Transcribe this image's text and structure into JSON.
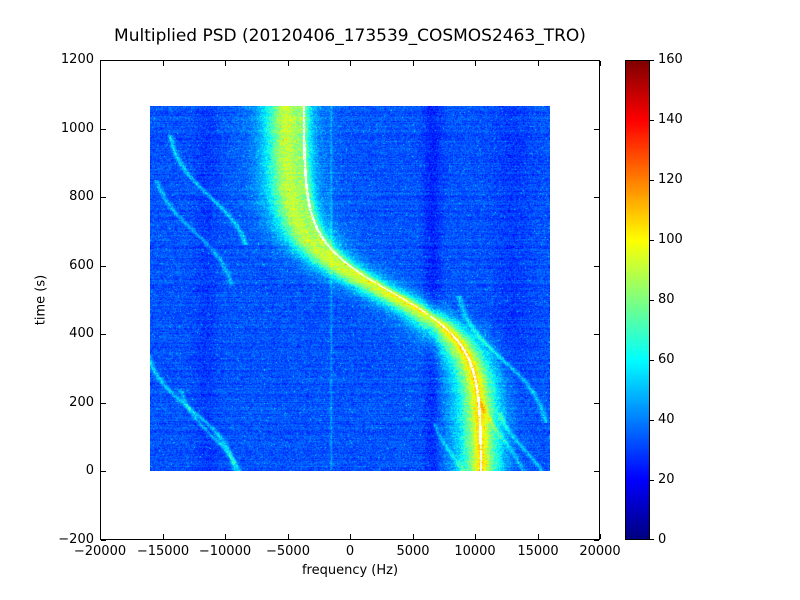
{
  "chart_data": {
    "type": "heatmap",
    "title": "Multiplied PSD (20120406_173539_COSMOS2463_TRO)",
    "xlabel": "frequency (Hz)",
    "ylabel": "time (s)",
    "xlim": [
      -20000,
      20000
    ],
    "ylim": [
      -200,
      1200
    ],
    "grid": false,
    "legend": "none",
    "xticks": [
      {
        "value": -20000,
        "label": "−20000"
      },
      {
        "value": -15000,
        "label": "−15000"
      },
      {
        "value": -10000,
        "label": "−10000"
      },
      {
        "value": -5000,
        "label": "−5000"
      },
      {
        "value": 0,
        "label": "0"
      },
      {
        "value": 5000,
        "label": "5000"
      },
      {
        "value": 10000,
        "label": "10000"
      },
      {
        "value": 15000,
        "label": "15000"
      },
      {
        "value": 20000,
        "label": "20000"
      }
    ],
    "yticks": [
      {
        "value": -200,
        "label": "−200"
      },
      {
        "value": 0,
        "label": "0"
      },
      {
        "value": 200,
        "label": "200"
      },
      {
        "value": 400,
        "label": "400"
      },
      {
        "value": 600,
        "label": "600"
      },
      {
        "value": 800,
        "label": "800"
      },
      {
        "value": 1000,
        "label": "1000"
      },
      {
        "value": 1200,
        "label": "1200"
      }
    ],
    "colorbar": {
      "colormap": "jet",
      "min": 0,
      "max": 160,
      "ticks": [
        {
          "value": 0,
          "label": "0"
        },
        {
          "value": 20,
          "label": "20"
        },
        {
          "value": 40,
          "label": "40"
        },
        {
          "value": 60,
          "label": "60"
        },
        {
          "value": 80,
          "label": "80"
        },
        {
          "value": 100,
          "label": "100"
        },
        {
          "value": 120,
          "label": "120"
        },
        {
          "value": 140,
          "label": "140"
        },
        {
          "value": 160,
          "label": "160"
        }
      ]
    },
    "heatmap": {
      "freq_range_hz": [
        -16000,
        16000
      ],
      "time_range_s": [
        0,
        1065
      ],
      "background_value": 33,
      "noise_amplitude": 8,
      "row_noise": 3,
      "speckle": {
        "probability": 0.012,
        "boost": 18
      },
      "doppler_band": {
        "center_hz": 2700,
        "amplitude_hz": 7800,
        "t_mid_s": 520,
        "tau_s": 150,
        "sigma_hz": 1500,
        "core_delta": 40,
        "halo_sigma_hz": 2700,
        "halo_delta": 18,
        "edge_jitter_hz": 700
      },
      "carrier_line": {
        "center_hz": 3400,
        "amplitude_hz": 7100,
        "t_mid_s": 520,
        "tau_s": 150,
        "halfwidth_hz": 100,
        "glow_sigma_hz": 500,
        "glow_delta": 16,
        "color": "#ffffff"
      },
      "vertical_stripes": [
        {
          "freq_hz": 6600,
          "sigma_hz": 700,
          "delta": -8
        },
        {
          "freq_hz": 13000,
          "sigma_hz": 1500,
          "delta": -4
        },
        {
          "freq_hz": -11500,
          "sigma_hz": 900,
          "delta": -4
        },
        {
          "freq_hz": -1500,
          "sigma_hz": 90,
          "delta": 10
        }
      ],
      "faint_traces": [
        {
          "center_hz": -11200,
          "amplitude_hz": 3500,
          "t_mid_s": 800,
          "tau_s": 120,
          "t_range": [
            660,
            980
          ],
          "delta": 20,
          "sigma_hz": 220
        },
        {
          "center_hz": -12500,
          "amplitude_hz": 3500,
          "t_mid_s": 700,
          "tau_s": 120,
          "t_range": [
            540,
            850
          ],
          "delta": 16,
          "sigma_hz": 200
        },
        {
          "center_hz": -12750,
          "amplitude_hz": 3960,
          "t_mid_s": 180,
          "tau_s": 120,
          "t_range": [
            0,
            340
          ],
          "delta": 20,
          "sigma_hz": 220
        },
        {
          "center_hz": -11000,
          "amplitude_hz": 3000,
          "t_mid_s": 100,
          "tau_s": 110,
          "t_range": [
            0,
            240
          ],
          "delta": 16,
          "sigma_hz": 200
        },
        {
          "center_hz": 12200,
          "amplitude_hz": 3900,
          "t_mid_s": 325,
          "tau_s": 130,
          "t_range": [
            140,
            510
          ],
          "delta": 18,
          "sigma_hz": 220
        },
        {
          "center_hz": 14000,
          "amplitude_hz": 2500,
          "t_mid_s": 60,
          "tau_s": 100,
          "t_range": [
            0,
            170
          ],
          "delta": 16,
          "sigma_hz": 200
        },
        {
          "center_hz": 8200,
          "amplitude_hz": 1800,
          "t_mid_s": 45,
          "tau_s": 90,
          "t_range": [
            0,
            140
          ],
          "delta": 14,
          "sigma_hz": 180
        },
        {
          "center_hz": 12300,
          "amplitude_hz": 2800,
          "t_mid_s": 90,
          "tau_s": 140,
          "t_range": [
            0,
            200
          ],
          "delta": 14,
          "sigma_hz": 200
        }
      ]
    }
  }
}
